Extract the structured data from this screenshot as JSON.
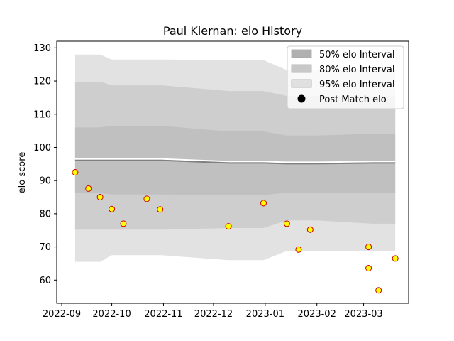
{
  "chart_data": {
    "type": "line",
    "title": "Paul Kiernan: elo History",
    "ylabel": "elo score",
    "xlabel": "",
    "xlim": [
      "2022-08-29",
      "2023-03-28"
    ],
    "ylim": [
      53,
      132
    ],
    "y_ticks": [
      60,
      70,
      80,
      90,
      100,
      110,
      120,
      130
    ],
    "x_ticks": [
      {
        "date": "2022-09-01",
        "label": "2022-09"
      },
      {
        "date": "2022-10-01",
        "label": "2022-10"
      },
      {
        "date": "2022-11-01",
        "label": "2022-11"
      },
      {
        "date": "2022-12-01",
        "label": "2022-12"
      },
      {
        "date": "2023-01-01",
        "label": "2023-01"
      },
      {
        "date": "2023-02-01",
        "label": "2023-02"
      },
      {
        "date": "2023-03-01",
        "label": "2023-03"
      }
    ],
    "legend_position": "top-right",
    "bands": {
      "x": [
        "2022-09-09",
        "2022-09-24",
        "2022-10-01",
        "2022-10-31",
        "2022-12-10",
        "2022-12-31",
        "2023-01-14",
        "2023-02-01",
        "2023-03-06",
        "2023-03-20"
      ],
      "p95": {
        "upper": [
          128.0,
          128.0,
          126.5,
          126.5,
          126.3,
          126.3,
          123.3,
          123.3,
          123.3,
          123.3
        ],
        "lower": [
          65.5,
          65.5,
          67.5,
          67.5,
          66.0,
          66.0,
          68.8,
          68.8,
          68.8,
          68.8
        ]
      },
      "p80": {
        "upper": [
          119.8,
          119.8,
          118.7,
          118.7,
          117.0,
          117.0,
          115.5,
          115.5,
          115.5,
          115.5
        ],
        "lower": [
          75.2,
          75.2,
          75.2,
          75.2,
          75.7,
          75.7,
          78.0,
          78.0,
          77.0,
          77.0
        ]
      },
      "p50": {
        "upper": [
          106.0,
          106.0,
          106.5,
          106.5,
          104.8,
          104.8,
          103.6,
          103.6,
          104.1,
          104.1
        ],
        "lower": [
          86.2,
          86.2,
          85.8,
          85.8,
          85.6,
          85.6,
          86.4,
          86.4,
          86.3,
          86.3
        ]
      }
    },
    "mean": {
      "x": [
        "2022-09-09",
        "2022-09-24",
        "2022-10-01",
        "2022-10-31",
        "2022-12-10",
        "2022-12-31",
        "2023-01-14",
        "2023-02-01",
        "2023-03-06",
        "2023-03-20"
      ],
      "y": [
        96.1,
        96.1,
        96.1,
        96.1,
        95.3,
        95.3,
        95.1,
        95.1,
        95.3,
        95.3
      ]
    },
    "points": [
      {
        "x": "2022-09-09",
        "y": 92.5
      },
      {
        "x": "2022-09-17",
        "y": 87.6
      },
      {
        "x": "2022-09-24",
        "y": 85.0
      },
      {
        "x": "2022-10-01",
        "y": 81.4
      },
      {
        "x": "2022-10-08",
        "y": 77.0
      },
      {
        "x": "2022-10-22",
        "y": 84.5
      },
      {
        "x": "2022-10-30",
        "y": 81.3
      },
      {
        "x": "2022-12-10",
        "y": 76.2
      },
      {
        "x": "2022-12-31",
        "y": 83.2
      },
      {
        "x": "2023-01-14",
        "y": 77.0
      },
      {
        "x": "2023-01-21",
        "y": 69.2
      },
      {
        "x": "2023-01-28",
        "y": 75.2
      },
      {
        "x": "2023-03-04",
        "y": 70.0
      },
      {
        "x": "2023-03-04",
        "y": 63.6
      },
      {
        "x": "2023-03-10",
        "y": 56.9
      },
      {
        "x": "2023-03-20",
        "y": 66.5
      }
    ],
    "legend": [
      {
        "label": "50% elo Interval",
        "kind": "band",
        "color": "#b0b0b0"
      },
      {
        "label": "80% elo Interval",
        "kind": "band",
        "color": "#c8c8c8"
      },
      {
        "label": "95% elo Interval",
        "kind": "band",
        "color": "#e0e0e0"
      },
      {
        "label": "Post Match elo",
        "kind": "marker",
        "color": "#000000"
      }
    ],
    "colors": {
      "band_fill": "#9e9e9e",
      "mean_line": "#808080",
      "mean_highlight": "#ffffff",
      "point_fill": "#ffff00",
      "point_edge": "#cc0000"
    }
  }
}
